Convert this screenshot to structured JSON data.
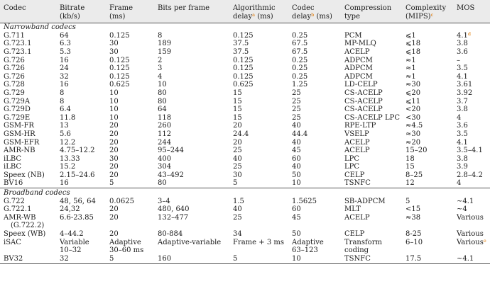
{
  "table": {
    "headers": [
      {
        "line1": "Codec",
        "line2": "",
        "sup": ""
      },
      {
        "line1": "Bitrate",
        "line2": "(kb/s)",
        "sup": ""
      },
      {
        "line1": "Frame",
        "line2": "(ms)",
        "sup": ""
      },
      {
        "line1": "Bits per frame",
        "line2": "",
        "sup": ""
      },
      {
        "line1": "Algorithmic",
        "line2": "delay",
        "sup": "a",
        "line2_after": " (ms)"
      },
      {
        "line1": "Codec",
        "line2": "delay",
        "sup": "b",
        "line2_after": " (ms)"
      },
      {
        "line1": "Compression",
        "line2": "type",
        "sup": ""
      },
      {
        "line1": "Complexity",
        "line2": "(MIPS)",
        "sup": "c"
      },
      {
        "line1": "MOS",
        "line2": "",
        "sup": ""
      }
    ],
    "sections": [
      {
        "title": "Narrowband codecs",
        "rows": [
          [
            "G.711",
            "64",
            "0.125",
            "8",
            "0.125",
            "0.25",
            "PCM",
            "⩽1",
            "4.1",
            "d"
          ],
          [
            "G.723.1",
            "6.3",
            "30",
            "189",
            "37.5",
            "67.5",
            "MP-MLQ",
            "⩽18",
            "3.8",
            ""
          ],
          [
            "G.723.1",
            "5.3",
            "30",
            "159",
            "37.5",
            "67.5",
            "ACELP",
            "⩽18",
            "3.6",
            ""
          ],
          [
            "G.726",
            "16",
            "0.125",
            "2",
            "0.125",
            "0.25",
            "ADPCM",
            "≈1",
            "–",
            ""
          ],
          [
            "G.726",
            "24",
            "0.125",
            "3",
            "0.125",
            "0.25",
            "ADPCM",
            "≈1",
            "3.5",
            ""
          ],
          [
            "G.726",
            "32",
            "0.125",
            "4",
            "0.125",
            "0.25",
            "ADPCM",
            "≈1",
            "4.1",
            ""
          ],
          [
            "G.728",
            "16",
            "0.625",
            "10",
            "0.625",
            "1.25",
            "LD-CELP",
            "≈30",
            "3.61",
            ""
          ],
          [
            "G.729",
            "8",
            "10",
            "80",
            "15",
            "25",
            "CS-ACELP",
            "⩽20",
            "3.92",
            ""
          ],
          [
            "G.729A",
            "8",
            "10",
            "80",
            "15",
            "25",
            "CS-ACELP",
            "⩽11",
            "3.7",
            ""
          ],
          [
            "G.729D",
            "6.4",
            "10",
            "64",
            "15",
            "25",
            "CS-ACELP",
            "<20",
            "3.8",
            ""
          ],
          [
            "G.729E",
            "11.8",
            "10",
            "118",
            "15",
            "25",
            "CS-ACELP LPC",
            "<30",
            "4",
            ""
          ],
          [
            "GSM-FR",
            "13",
            "20",
            "260",
            "20",
            "40",
            "RPE-LTP",
            "≈4.5",
            "3.6",
            ""
          ],
          [
            "GSM-HR",
            "5.6",
            "20",
            "112",
            "24.4",
            "44.4",
            "VSELP",
            "≈30",
            "3.5",
            ""
          ],
          [
            "GSM-EFR",
            "12.2",
            "20",
            "244",
            "20",
            "40",
            "ACELP",
            "≈20",
            "4.1",
            ""
          ],
          [
            "AMR-NB",
            "4.75–12.2",
            "20",
            "95–244",
            "25",
            "45",
            "ACELP",
            "15–20",
            "3.5–4.1",
            ""
          ],
          [
            "iLBC",
            "13.33",
            "30",
            "400",
            "40",
            "60",
            "LPC",
            "18",
            "3.8",
            ""
          ],
          [
            "iLBC",
            "15.2",
            "20",
            "304",
            "25",
            "40",
            "LPC",
            "15",
            "3.9",
            ""
          ],
          [
            "Speex (NB)",
            "2.15–24.6",
            "20",
            "43–492",
            "30",
            "50",
            "CELP",
            "8–25",
            "2.8–4.2",
            ""
          ],
          [
            "BV16",
            "16",
            "5",
            "80",
            "5",
            "10",
            "TSNFC",
            "12",
            "4",
            ""
          ]
        ]
      },
      {
        "title": "Broadband codecs",
        "rows": [
          [
            "G.722",
            "48, 56, 64",
            "0.0625",
            "3–4",
            "1.5",
            "1.5625",
            "SB-ADPCM",
            "5",
            "~4.1",
            ""
          ],
          [
            "G.722.1",
            "24,32",
            "20",
            "480, 640",
            "40",
            "60",
            "MLT",
            "<15",
            "~4",
            ""
          ],
          [
            "AMR-WB|(G.722.2)",
            "6.6-23.85",
            "20",
            "132–477",
            "25",
            "45",
            "ACELP",
            "≈38",
            "Various",
            ""
          ],
          [
            "Speex (WB)",
            "4–44.2",
            "20",
            "80-884",
            "34",
            "50",
            "CELP",
            "8-25",
            "Various",
            ""
          ],
          [
            "iSAC",
            "Variable|10–32",
            "Adaptive|30–60 ms",
            "Adaptive-variable",
            "Frame + 3 ms",
            "Adaptive|63–123",
            "Transform|coding",
            "6–10",
            "Various",
            "e"
          ],
          [
            "BV32",
            "32",
            "5",
            "160",
            "5",
            "10",
            "TSNFC",
            "17.5",
            "~4.1",
            ""
          ]
        ]
      }
    ]
  }
}
